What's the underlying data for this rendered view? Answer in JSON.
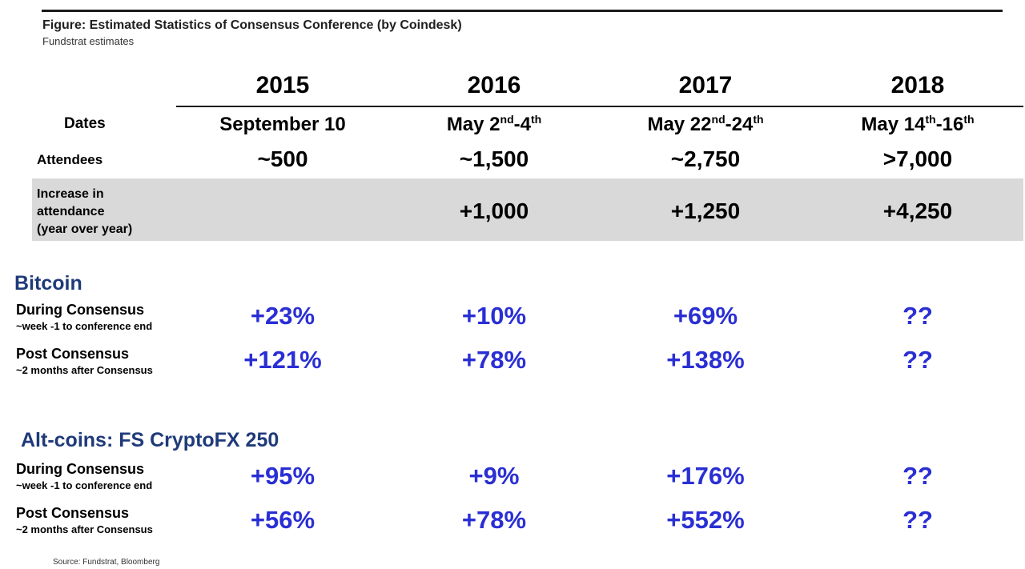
{
  "figure": {
    "title": "Figure: Estimated Statistics of Consensus Conference (by Coindesk)",
    "subtitle": "Fundstrat estimates",
    "source": "Source: Fundstrat, Bloomberg"
  },
  "years": [
    "2015",
    "2016",
    "2017",
    "2018"
  ],
  "dates": {
    "label": "Dates",
    "values": [
      {
        "main": "September 10",
        "sup1": "",
        "mid": "",
        "sup2": ""
      },
      {
        "main": "May 2",
        "sup1": "nd",
        "mid": "-4",
        "sup2": "th"
      },
      {
        "main": "May 22",
        "sup1": "nd",
        "mid": "-24",
        "sup2": "th"
      },
      {
        "main": "May 14",
        "sup1": "th",
        "mid": "-16",
        "sup2": "th"
      }
    ]
  },
  "attendees": {
    "label": "Attendees",
    "values": [
      "~500",
      "~1,500",
      "~2,750",
      ">7,000"
    ]
  },
  "increase": {
    "label_lines": [
      "Increase in",
      "attendance",
      "(year over year)"
    ],
    "values": [
      "",
      "+1,000",
      "+1,250",
      "+4,250"
    ]
  },
  "bitcoin": {
    "title": "Bitcoin",
    "during": {
      "label": "During Consensus",
      "sub": "~week -1 to conference end",
      "values": [
        "+23%",
        "+10%",
        "+69%",
        "??"
      ]
    },
    "post": {
      "label": "Post Consensus",
      "sub": "~2 months after Consensus",
      "values": [
        "+121%",
        "+78%",
        "+138%",
        "??"
      ]
    }
  },
  "altcoins": {
    "title": "Alt-coins: FS CryptoFX 250",
    "during": {
      "label": "During Consensus",
      "sub": "~week -1 to conference end",
      "values": [
        "+95%",
        "+9%",
        "+176%",
        "??"
      ]
    },
    "post": {
      "label": "Post Consensus",
      "sub": "~2 months after Consensus",
      "values": [
        "+56%",
        "+78%",
        "+552%",
        "??"
      ]
    }
  },
  "colors": {
    "section_title": "#1f3a7a",
    "percent_values": "#2a2fd4",
    "band": "#d9d9d9"
  }
}
